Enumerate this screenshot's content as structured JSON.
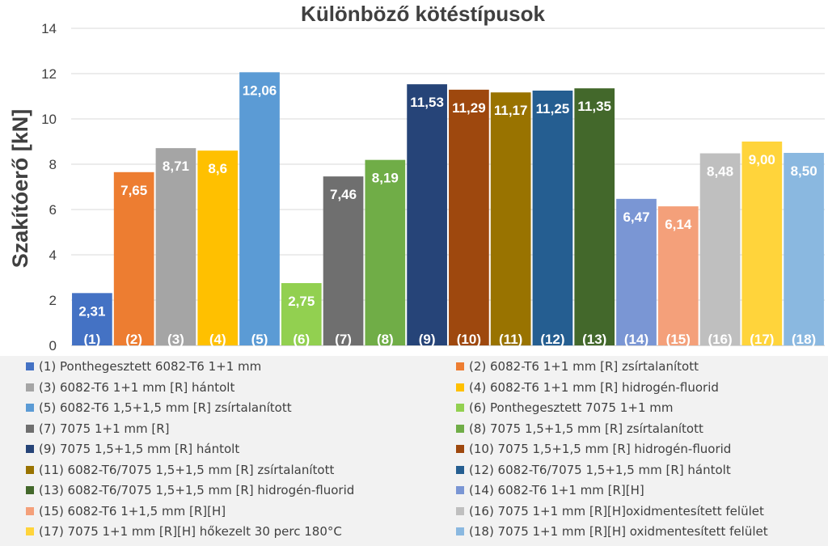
{
  "colors": {
    "axis": "#d9d9d9",
    "grid": "#d9d9d9",
    "text": "#404040",
    "legend_bg": "#f2f2f2"
  },
  "chart_data": {
    "type": "bar",
    "title": "Különböző kötéstípusok",
    "xlabel": "",
    "ylabel": "Szakítóerő [kN]",
    "ylim": [
      0,
      14
    ],
    "yticks": [
      0,
      2,
      4,
      6,
      8,
      10,
      12,
      14
    ],
    "grid": true,
    "legend_position": "bottom",
    "categories": [
      "(1)",
      "(2)",
      "(3)",
      "(4)",
      "(5)",
      "(6)",
      "(7)",
      "(8)",
      "(9)",
      "(10)",
      "(11)",
      "(12)",
      "(13)",
      "(14)",
      "(15)",
      "(16)",
      "(17)",
      "(18)"
    ],
    "values": [
      2.31,
      7.65,
      8.71,
      8.6,
      12.06,
      2.75,
      7.46,
      8.19,
      11.53,
      11.29,
      11.17,
      11.25,
      11.35,
      6.47,
      6.14,
      8.48,
      9.0,
      8.5
    ],
    "value_labels": [
      "2,31",
      "7,65",
      "8,71",
      "8,6",
      "12,06",
      "2,75",
      "7,46",
      "8,19",
      "11,53",
      "11,29",
      "11,17",
      "11,25",
      "11,35",
      "6,47",
      "6,14",
      "8,48",
      "9,00",
      "8,50"
    ],
    "bar_colors": [
      "#4472c4",
      "#ed7d31",
      "#a5a5a5",
      "#ffc000",
      "#5b9bd5",
      "#92d050",
      "#6f6f6f",
      "#70ad47",
      "#264478",
      "#9e480e",
      "#997300",
      "#255e91",
      "#43682b",
      "#7a96d4",
      "#f4a07a",
      "#bfbfbf",
      "#ffd43b",
      "#8ab8e0"
    ],
    "legend": [
      "(1) Ponthegesztett 6082-T6 1+1 mm",
      "(2) 6082-T6 1+1 mm [R] zsírtalanított",
      "(3) 6082-T6 1+1 mm [R] hántolt",
      "(4) 6082-T6 1+1 mm [R] hidrogén-fluorid",
      "(5) 6082-T6 1,5+1,5 mm [R] zsírtalanított",
      "(6) Ponthegesztett 7075 1+1 mm",
      "(7) 7075 1+1 mm [R]",
      "(8) 7075 1,5+1,5 mm [R] zsírtalanított",
      "(9) 7075 1,5+1,5 mm [R] hántolt",
      "(10) 7075 1,5+1,5 mm [R] hidrogén-fluorid",
      "(11) 6082-T6/7075 1,5+1,5 mm [R] zsírtalanított",
      "(12) 6082-T6/7075 1,5+1,5 mm [R] hántolt",
      "(13) 6082-T6/7075 1,5+1,5 mm [R] hidrogén-fluorid",
      "(14) 6082-T6 1+1 mm [R][H]",
      "(15) 6082-T6 1+1,5 mm [R][H]",
      "(16) 7075 1+1 mm [R][H]oxidmentesített felület",
      "(17) 7075 1+1 mm [R][H] hőkezelt 30 perc 180°C",
      "(18) 7075 1+1 mm [R][H] oxidmentesített felület"
    ]
  }
}
